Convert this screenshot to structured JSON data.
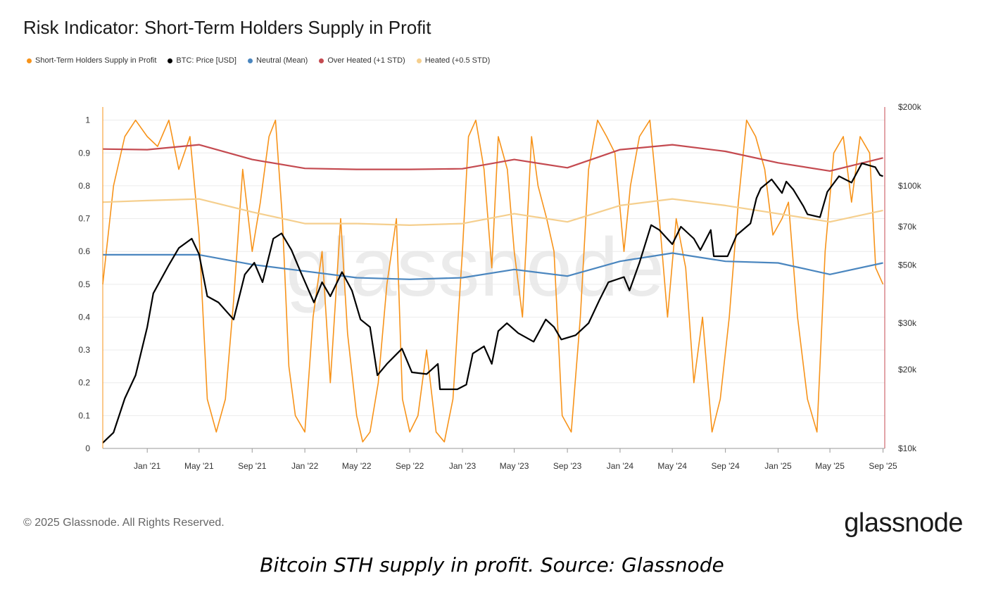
{
  "title": "Risk Indicator: Short-Term Holders Supply in Profit",
  "legend": [
    {
      "label": "Short-Term Holders Supply in Profit",
      "color": "#f7931a"
    },
    {
      "label": "BTC: Price [USD]",
      "color": "#000000"
    },
    {
      "label": "Neutral (Mean)",
      "color": "#4a86bf"
    },
    {
      "label": "Over Heated (+1 STD)",
      "color": "#c44a50"
    },
    {
      "label": "Heated (+0.5 STD)",
      "color": "#f5cf8e"
    }
  ],
  "watermark": "glassnode",
  "copyright": "© 2025 Glassnode. All Rights Reserved.",
  "brand": "glassnode",
  "caption": "Bitcoin STH supply in profit. Source: Glassnode",
  "chart_data": {
    "type": "line",
    "x_ticks": [
      "Jan '21",
      "May '21",
      "Sep '21",
      "Jan '22",
      "May '22",
      "Sep '22",
      "Jan '23",
      "May '23",
      "Sep '23",
      "Jan '24",
      "May '24",
      "Sep '24",
      "Jan '25",
      "May '25",
      "Sep '25"
    ],
    "y_left": {
      "ticks": [
        "0",
        "0.1",
        "0.2",
        "0.3",
        "0.4",
        "0.5",
        "0.6",
        "0.7",
        "0.8",
        "0.9",
        "1"
      ],
      "range": [
        0,
        1.04
      ]
    },
    "y_right": {
      "scale": "log",
      "ticks": [
        "$10k",
        "$20k",
        "$30k",
        "$50k",
        "$70k",
        "$100k",
        "$200k"
      ],
      "tick_values": [
        10000,
        20000,
        30000,
        50000,
        70000,
        100000,
        200000
      ],
      "range": [
        10000,
        200000
      ]
    },
    "series": [
      {
        "name": "Short-Term Holders Supply in Profit",
        "color": "#f7931a",
        "axis": "left",
        "x": [
          "2020-09-20",
          "2020-10-15",
          "2020-11-10",
          "2020-12-05",
          "2021-01-01",
          "2021-01-25",
          "2021-02-20",
          "2021-03-15",
          "2021-04-10",
          "2021-05-01",
          "2021-05-20",
          "2021-06-10",
          "2021-07-01",
          "2021-07-20",
          "2021-08-10",
          "2021-09-01",
          "2021-09-20",
          "2021-10-10",
          "2021-10-25",
          "2021-11-10",
          "2021-11-25",
          "2021-12-10",
          "2022-01-01",
          "2022-01-20",
          "2022-02-10",
          "2022-03-01",
          "2022-03-25",
          "2022-04-10",
          "2022-05-01",
          "2022-05-15",
          "2022-06-01",
          "2022-06-20",
          "2022-07-10",
          "2022-08-01",
          "2022-08-15",
          "2022-09-01",
          "2022-09-20",
          "2022-10-10",
          "2022-11-01",
          "2022-11-20",
          "2022-12-10",
          "2023-01-01",
          "2023-01-15",
          "2023-02-01",
          "2023-02-20",
          "2023-03-10",
          "2023-03-25",
          "2023-04-15",
          "2023-05-01",
          "2023-05-20",
          "2023-06-10",
          "2023-06-25",
          "2023-07-15",
          "2023-08-01",
          "2023-08-20",
          "2023-09-10",
          "2023-10-01",
          "2023-10-20",
          "2023-11-10",
          "2023-12-01",
          "2023-12-20",
          "2024-01-10",
          "2024-01-25",
          "2024-02-15",
          "2024-03-10",
          "2024-04-01",
          "2024-04-20",
          "2024-05-10",
          "2024-06-01",
          "2024-06-20",
          "2024-07-10",
          "2024-08-01",
          "2024-08-20",
          "2024-09-10",
          "2024-10-01",
          "2024-10-20",
          "2024-11-10",
          "2024-12-01",
          "2024-12-20",
          "2025-01-10",
          "2025-01-25",
          "2025-02-15",
          "2025-03-10",
          "2025-04-01",
          "2025-04-20",
          "2025-05-10",
          "2025-06-01",
          "2025-06-20",
          "2025-07-10",
          "2025-08-01",
          "2025-08-15",
          "2025-09-01"
        ],
        "y": [
          0.5,
          0.8,
          0.95,
          1.0,
          0.95,
          0.92,
          1.0,
          0.85,
          0.95,
          0.65,
          0.15,
          0.05,
          0.15,
          0.45,
          0.85,
          0.6,
          0.75,
          0.95,
          1.0,
          0.7,
          0.25,
          0.1,
          0.05,
          0.4,
          0.6,
          0.2,
          0.7,
          0.35,
          0.1,
          0.02,
          0.05,
          0.2,
          0.5,
          0.7,
          0.15,
          0.05,
          0.1,
          0.3,
          0.05,
          0.02,
          0.15,
          0.6,
          0.95,
          1.0,
          0.85,
          0.55,
          0.95,
          0.85,
          0.6,
          0.4,
          0.95,
          0.8,
          0.7,
          0.6,
          0.1,
          0.05,
          0.4,
          0.85,
          1.0,
          0.95,
          0.9,
          0.6,
          0.8,
          0.95,
          1.0,
          0.7,
          0.4,
          0.7,
          0.55,
          0.2,
          0.4,
          0.05,
          0.15,
          0.4,
          0.75,
          1.0,
          0.95,
          0.85,
          0.65,
          0.7,
          0.75,
          0.4,
          0.15,
          0.05,
          0.6,
          0.9,
          0.95,
          0.75,
          0.95,
          0.9,
          0.55,
          0.5
        ]
      },
      {
        "name": "BTC: Price [USD]",
        "color": "#000000",
        "axis": "right",
        "x": [
          "2020-09-20",
          "2020-10-15",
          "2020-11-10",
          "2020-12-05",
          "2021-01-01",
          "2021-01-15",
          "2021-02-20",
          "2021-03-15",
          "2021-04-14",
          "2021-05-01",
          "2021-05-20",
          "2021-06-15",
          "2021-07-20",
          "2021-08-15",
          "2021-09-06",
          "2021-09-25",
          "2021-10-20",
          "2021-11-08",
          "2021-12-01",
          "2021-12-20",
          "2022-01-22",
          "2022-02-10",
          "2022-03-01",
          "2022-03-28",
          "2022-04-20",
          "2022-05-10",
          "2022-06-01",
          "2022-06-18",
          "2022-07-10",
          "2022-08-14",
          "2022-09-06",
          "2022-10-10",
          "2022-11-05",
          "2022-11-10",
          "2022-12-20",
          "2023-01-10",
          "2023-01-25",
          "2023-02-20",
          "2023-03-10",
          "2023-03-25",
          "2023-04-14",
          "2023-05-10",
          "2023-06-15",
          "2023-07-13",
          "2023-08-01",
          "2023-08-18",
          "2023-09-20",
          "2023-10-20",
          "2023-11-15",
          "2023-12-05",
          "2024-01-10",
          "2024-01-23",
          "2024-02-15",
          "2024-03-13",
          "2024-04-01",
          "2024-05-01",
          "2024-05-21",
          "2024-06-20",
          "2024-07-05",
          "2024-07-29",
          "2024-08-05",
          "2024-09-06",
          "2024-09-27",
          "2024-10-29",
          "2024-11-12",
          "2024-11-22",
          "2024-12-17",
          "2025-01-10",
          "2025-01-20",
          "2025-02-05",
          "2025-02-28",
          "2025-03-10",
          "2025-04-08",
          "2025-04-25",
          "2025-05-22",
          "2025-06-20",
          "2025-07-14",
          "2025-08-14",
          "2025-08-25",
          "2025-09-01"
        ],
        "y": [
          10500,
          11500,
          15500,
          19000,
          29000,
          39000,
          50000,
          58000,
          63000,
          55000,
          38000,
          36000,
          31000,
          46000,
          51000,
          43000,
          63000,
          66000,
          57000,
          48000,
          36000,
          43000,
          38000,
          47000,
          40000,
          31000,
          29000,
          19000,
          21000,
          24000,
          19500,
          19200,
          21000,
          16800,
          16800,
          17500,
          23000,
          24500,
          21000,
          28000,
          30000,
          27500,
          25500,
          31000,
          29000,
          26000,
          27000,
          30000,
          37000,
          43000,
          45000,
          40000,
          51000,
          71000,
          68000,
          60000,
          70000,
          63000,
          57000,
          68000,
          54000,
          54000,
          65000,
          72000,
          90000,
          98000,
          106000,
          94000,
          104000,
          97000,
          84000,
          78000,
          76000,
          95000,
          109000,
          103000,
          122000,
          118000,
          110000,
          109000
        ]
      },
      {
        "name": "Neutral (Mean)",
        "color": "#4a86bf",
        "axis": "left",
        "x": [
          "2020-09-20",
          "2021-01-01",
          "2021-05-01",
          "2021-09-01",
          "2022-01-01",
          "2022-05-01",
          "2022-09-01",
          "2023-01-01",
          "2023-05-01",
          "2023-09-01",
          "2024-01-01",
          "2024-05-01",
          "2024-09-01",
          "2025-01-01",
          "2025-05-01",
          "2025-09-01"
        ],
        "y": [
          0.59,
          0.59,
          0.59,
          0.56,
          0.54,
          0.52,
          0.515,
          0.52,
          0.545,
          0.525,
          0.57,
          0.595,
          0.57,
          0.565,
          0.53,
          0.565
        ]
      },
      {
        "name": "Over Heated (+1 STD)",
        "color": "#c44a50",
        "axis": "left",
        "x": [
          "2020-09-20",
          "2021-01-01",
          "2021-05-01",
          "2021-09-01",
          "2022-01-01",
          "2022-05-01",
          "2022-09-01",
          "2023-01-01",
          "2023-05-01",
          "2023-09-01",
          "2024-01-01",
          "2024-05-01",
          "2024-09-01",
          "2025-01-01",
          "2025-05-01",
          "2025-09-01"
        ],
        "y": [
          0.912,
          0.91,
          0.925,
          0.88,
          0.853,
          0.85,
          0.85,
          0.852,
          0.88,
          0.855,
          0.91,
          0.925,
          0.905,
          0.87,
          0.845,
          0.885
        ]
      },
      {
        "name": "Heated (+0.5 STD)",
        "color": "#f5cf8e",
        "axis": "left",
        "x": [
          "2020-09-20",
          "2021-01-01",
          "2021-05-01",
          "2021-09-01",
          "2022-01-01",
          "2022-05-01",
          "2022-09-01",
          "2023-01-01",
          "2023-05-01",
          "2023-09-01",
          "2024-01-01",
          "2024-05-01",
          "2024-09-01",
          "2025-01-01",
          "2025-05-01",
          "2025-09-01"
        ],
        "y": [
          0.75,
          0.755,
          0.76,
          0.72,
          0.685,
          0.685,
          0.68,
          0.685,
          0.715,
          0.69,
          0.74,
          0.76,
          0.74,
          0.715,
          0.69,
          0.725
        ]
      }
    ]
  }
}
